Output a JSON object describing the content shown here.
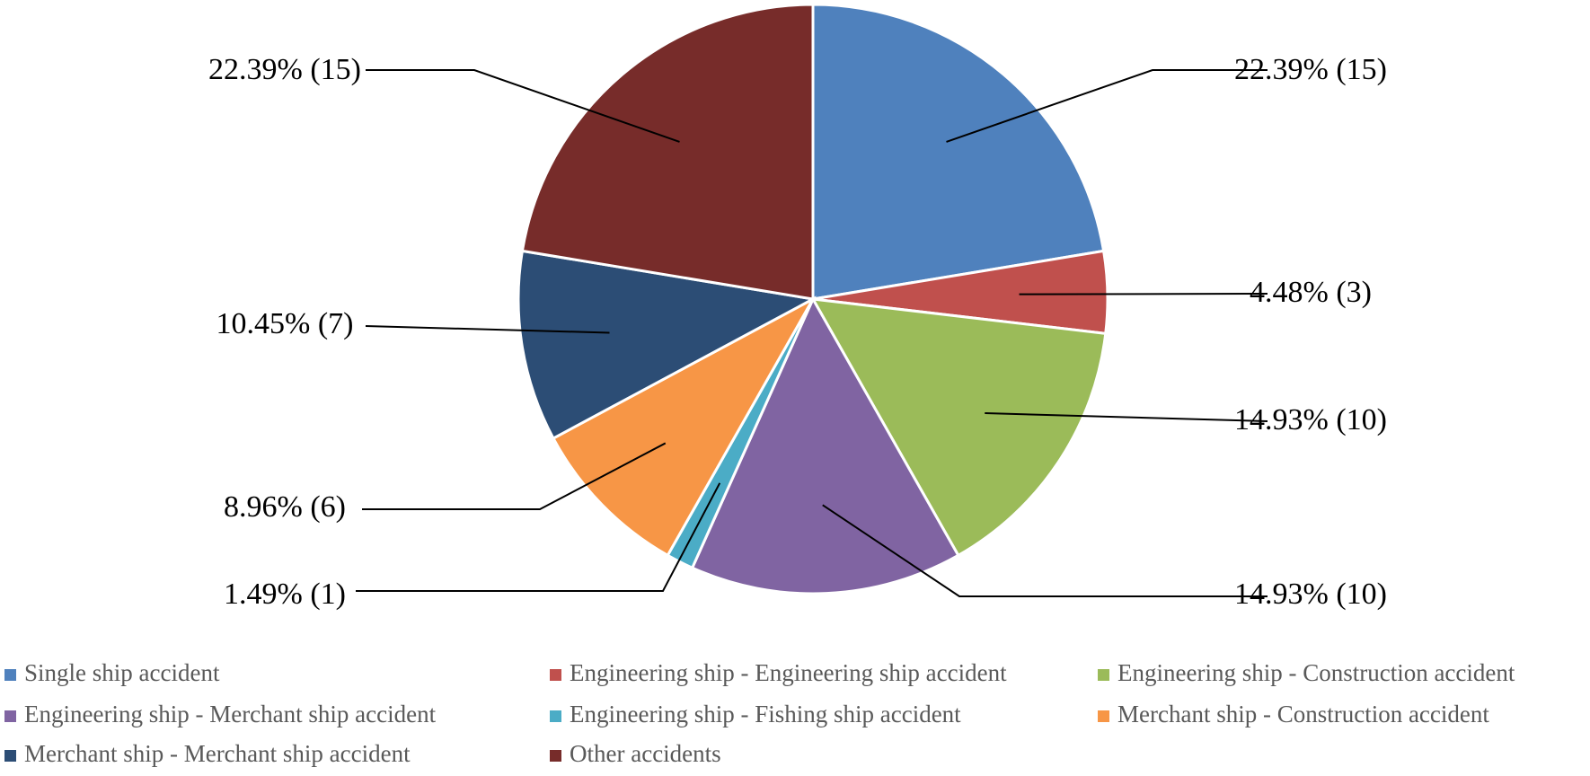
{
  "chart_data": {
    "type": "pie",
    "title": "",
    "legend_position": "bottom",
    "series": [
      {
        "name": "Single ship accident",
        "value": 15,
        "percent_label": "22.39% (15)",
        "color": "#4F81BD"
      },
      {
        "name": "Engineering ship - Engineering ship accident",
        "value": 3,
        "percent_label": "4.48% (3)",
        "color": "#C0504D"
      },
      {
        "name": "Engineering ship - Construction accident",
        "value": 10,
        "percent_label": "14.93% (10)",
        "color": "#9BBB59"
      },
      {
        "name": "Engineering ship - Merchant ship accident",
        "value": 10,
        "percent_label": "14.93% (10)",
        "color": "#8064A2"
      },
      {
        "name": "Engineering ship - Fishing ship accident",
        "value": 1,
        "percent_label": "1.49% (1)",
        "color": "#4BACC6"
      },
      {
        "name": "Merchant ship - Construction accident",
        "value": 6,
        "percent_label": "8.96% (6)",
        "color": "#F79646"
      },
      {
        "name": "Merchant ship - Merchant ship accident",
        "value": 7,
        "percent_label": "10.45% (7)",
        "color": "#2C4D75"
      },
      {
        "name": "Other accidents",
        "value": 15,
        "percent_label": "22.39% (15)",
        "color": "#772C2A"
      }
    ]
  }
}
